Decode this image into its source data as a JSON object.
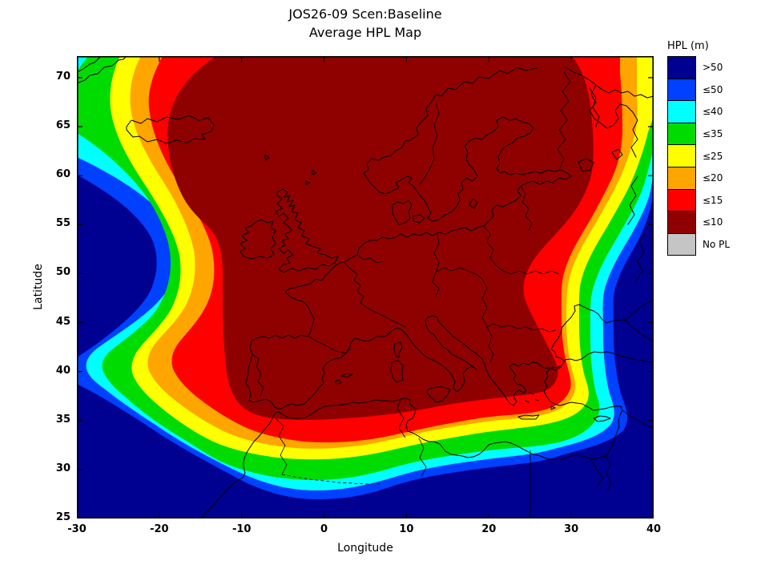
{
  "window": {
    "background": "#FFFFFF"
  },
  "title": {
    "line1": "JOS26-09 Scen:Baseline",
    "line2": "Average HPL Map"
  },
  "axes": {
    "xlabel": "Longitude",
    "ylabel": "Latitude",
    "xlim": [
      -30,
      40
    ],
    "ylim": [
      25,
      72.2
    ],
    "xticks": [
      -30,
      -20,
      -10,
      0,
      10,
      20,
      30,
      40
    ],
    "yticks": [
      25,
      30,
      35,
      40,
      45,
      50,
      55,
      60,
      65,
      70
    ]
  },
  "legend": {
    "title": "HPL (m)",
    "entries": [
      {
        "key": "gt50",
        "label": ">50",
        "color": "#000091"
      },
      {
        "key": "le50",
        "label": "≤50",
        "color": "#0040FF"
      },
      {
        "key": "le40",
        "label": "≤40",
        "color": "#00FFFF"
      },
      {
        "key": "le35",
        "label": "≤35",
        "color": "#00DC00"
      },
      {
        "key": "le25",
        "label": "≤25",
        "color": "#FFFF00"
      },
      {
        "key": "le20",
        "label": "≤20",
        "color": "#FFA500"
      },
      {
        "key": "le15",
        "label": "≤15",
        "color": "#FF0000"
      },
      {
        "key": "le10",
        "label": "≤10",
        "color": "#8F0000"
      },
      {
        "key": "nopl",
        "label": "No PL",
        "color": "#C5C5C5"
      }
    ]
  },
  "chart_data": {
    "type": "filled_contour_map",
    "title": "JOS26-09 Scen:Baseline",
    "subtitle": "Average HPL Map",
    "xlabel": "Longitude",
    "ylabel": "Latitude",
    "xlim": [
      -30,
      40
    ],
    "ylim": [
      25,
      72.2
    ],
    "grid": false,
    "legend_position": "right",
    "colorbar_title": "HPL (m)",
    "contour_levels_m": [
      10,
      15,
      20,
      25,
      35,
      40,
      50
    ],
    "no_data_label": "No PL",
    "bands": [
      {
        "key": "gt50",
        "label": ">50",
        "color": "#000091",
        "meaning": "HPL greater than 50 m"
      },
      {
        "key": "le50",
        "label": "≤50",
        "color": "#0040FF",
        "meaning": "HPL 40–50 m"
      },
      {
        "key": "le40",
        "label": "≤40",
        "color": "#00FFFF",
        "meaning": "HPL 35–40 m"
      },
      {
        "key": "le35",
        "label": "≤35",
        "color": "#00DC00",
        "meaning": "HPL 25–35 m"
      },
      {
        "key": "le25",
        "label": "≤25",
        "color": "#FFFF00",
        "meaning": "HPL 20–25 m"
      },
      {
        "key": "le20",
        "label": "≤20",
        "color": "#FFA500",
        "meaning": "HPL 15–20 m"
      },
      {
        "key": "le15",
        "label": "≤15",
        "color": "#FF0000",
        "meaning": "HPL 10–15 m"
      },
      {
        "key": "le10",
        "label": "≤10",
        "color": "#8F0000",
        "meaning": "HPL 10 m or better"
      },
      {
        "key": "nopl",
        "label": "No PL",
        "color": "#C5C5C5",
        "meaning": "no protection level available"
      }
    ],
    "reading": "Average Horizontal Protection Level map over Europe with black coastlines. The dark-red core (HPL ≤10 m) covers continental Europe, the British Isles, Iceland, Scandinavia, the Baltic, Iberia and the central Mediterranean, reaching the top of the map between about 13°W and 30°E. It is surrounded by concentric bands of increasing HPL (red ≤15, orange ≤20, yellow ≤25, green ≤35, cyan ≤40, blue ≤50). HPL >50 m (dark navy) fills the Atlantic southwest corner, a wedge on the west edge near 47–60°N, North Africa south of roughly 30–33°N, the eastern Mediterranean and Middle East, and western Russia east of about 33°E. A westward bulge of the green/cyan/blue bands appears near the Azores (~38°N), and the bands pinch toward the north-west corner near Greenland."
  }
}
